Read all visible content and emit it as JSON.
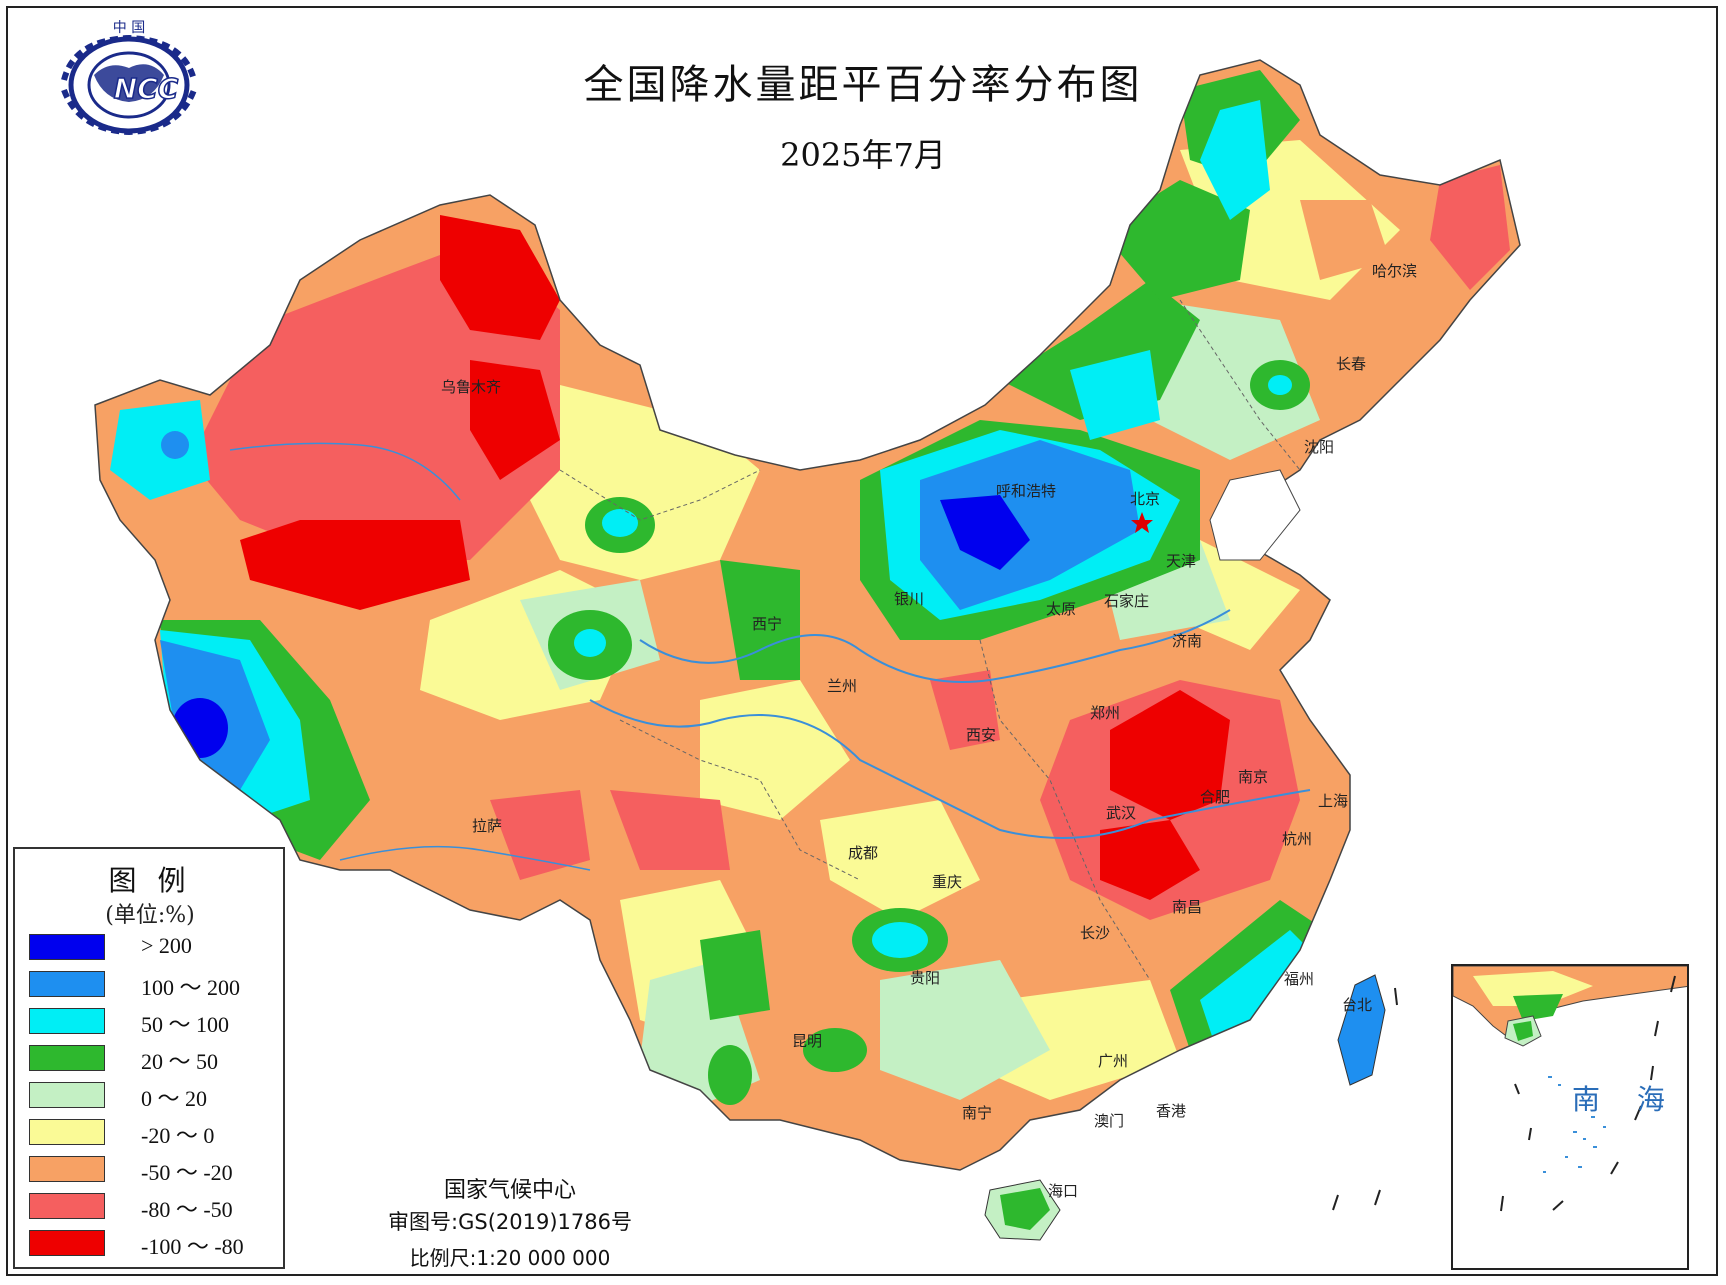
{
  "title": "全国降水量距平百分率分布图",
  "subtitle": "2025年7月",
  "logo": {
    "top_text": "中 国",
    "emblem_text": "NCC"
  },
  "colors": {
    "gt200": "#0000ee",
    "100_200": "#1e8ff0",
    "50_100": "#00eef5",
    "20_50": "#2eb82e",
    "0_20": "#c4f0c4",
    "m20_0": "#fafa96",
    "m50_m20": "#f7a164",
    "m80_m50": "#f55f5f",
    "m100_m80": "#ee0000"
  },
  "legend": {
    "title": "图 例",
    "unit": "(单位:%)",
    "items": [
      {
        "label": "> 200",
        "color": "#0000ee"
      },
      {
        "label": "100 ～ 200",
        "color": "#1e8ff0"
      },
      {
        "label": "50 ～ 100",
        "color": "#00eef5"
      },
      {
        "label": "20 ～ 50",
        "color": "#2eb82e"
      },
      {
        "label": "0 ～ 20",
        "color": "#c4f0c4"
      },
      {
        "label": "-20 ～ 0",
        "color": "#fafa96"
      },
      {
        "label": "-50 ～ -20",
        "color": "#f7a164"
      },
      {
        "label": "-80 ～ -50",
        "color": "#f55f5f"
      },
      {
        "label": "-100 ～ -80",
        "color": "#ee0000"
      }
    ]
  },
  "cities": [
    {
      "name": "乌鲁木齐"
    },
    {
      "name": "呼和浩特"
    },
    {
      "name": "北京"
    },
    {
      "name": "天津"
    },
    {
      "name": "银川"
    },
    {
      "name": "太原"
    },
    {
      "name": "石家庄"
    },
    {
      "name": "西宁"
    },
    {
      "name": "兰州"
    },
    {
      "name": "济南"
    },
    {
      "name": "郑州"
    },
    {
      "name": "西安"
    },
    {
      "name": "南京"
    },
    {
      "name": "合肥"
    },
    {
      "name": "上海"
    },
    {
      "name": "武汉"
    },
    {
      "name": "杭州"
    },
    {
      "name": "拉萨"
    },
    {
      "name": "成都"
    },
    {
      "name": "重庆"
    },
    {
      "name": "南昌"
    },
    {
      "name": "长沙"
    },
    {
      "name": "贵阳"
    },
    {
      "name": "福州"
    },
    {
      "name": "台北"
    },
    {
      "name": "昆明"
    },
    {
      "name": "广州"
    },
    {
      "name": "南宁"
    },
    {
      "name": "澳门"
    },
    {
      "name": "香港"
    },
    {
      "name": "海口"
    },
    {
      "name": "哈尔滨"
    },
    {
      "name": "长春"
    },
    {
      "name": "沈阳"
    }
  ],
  "inset": {
    "label": "南 海"
  },
  "credits": {
    "org": "国家气候中心",
    "review": "审图号:GS(2019)1786号",
    "scale": "比例尺:1:20 000 000"
  }
}
